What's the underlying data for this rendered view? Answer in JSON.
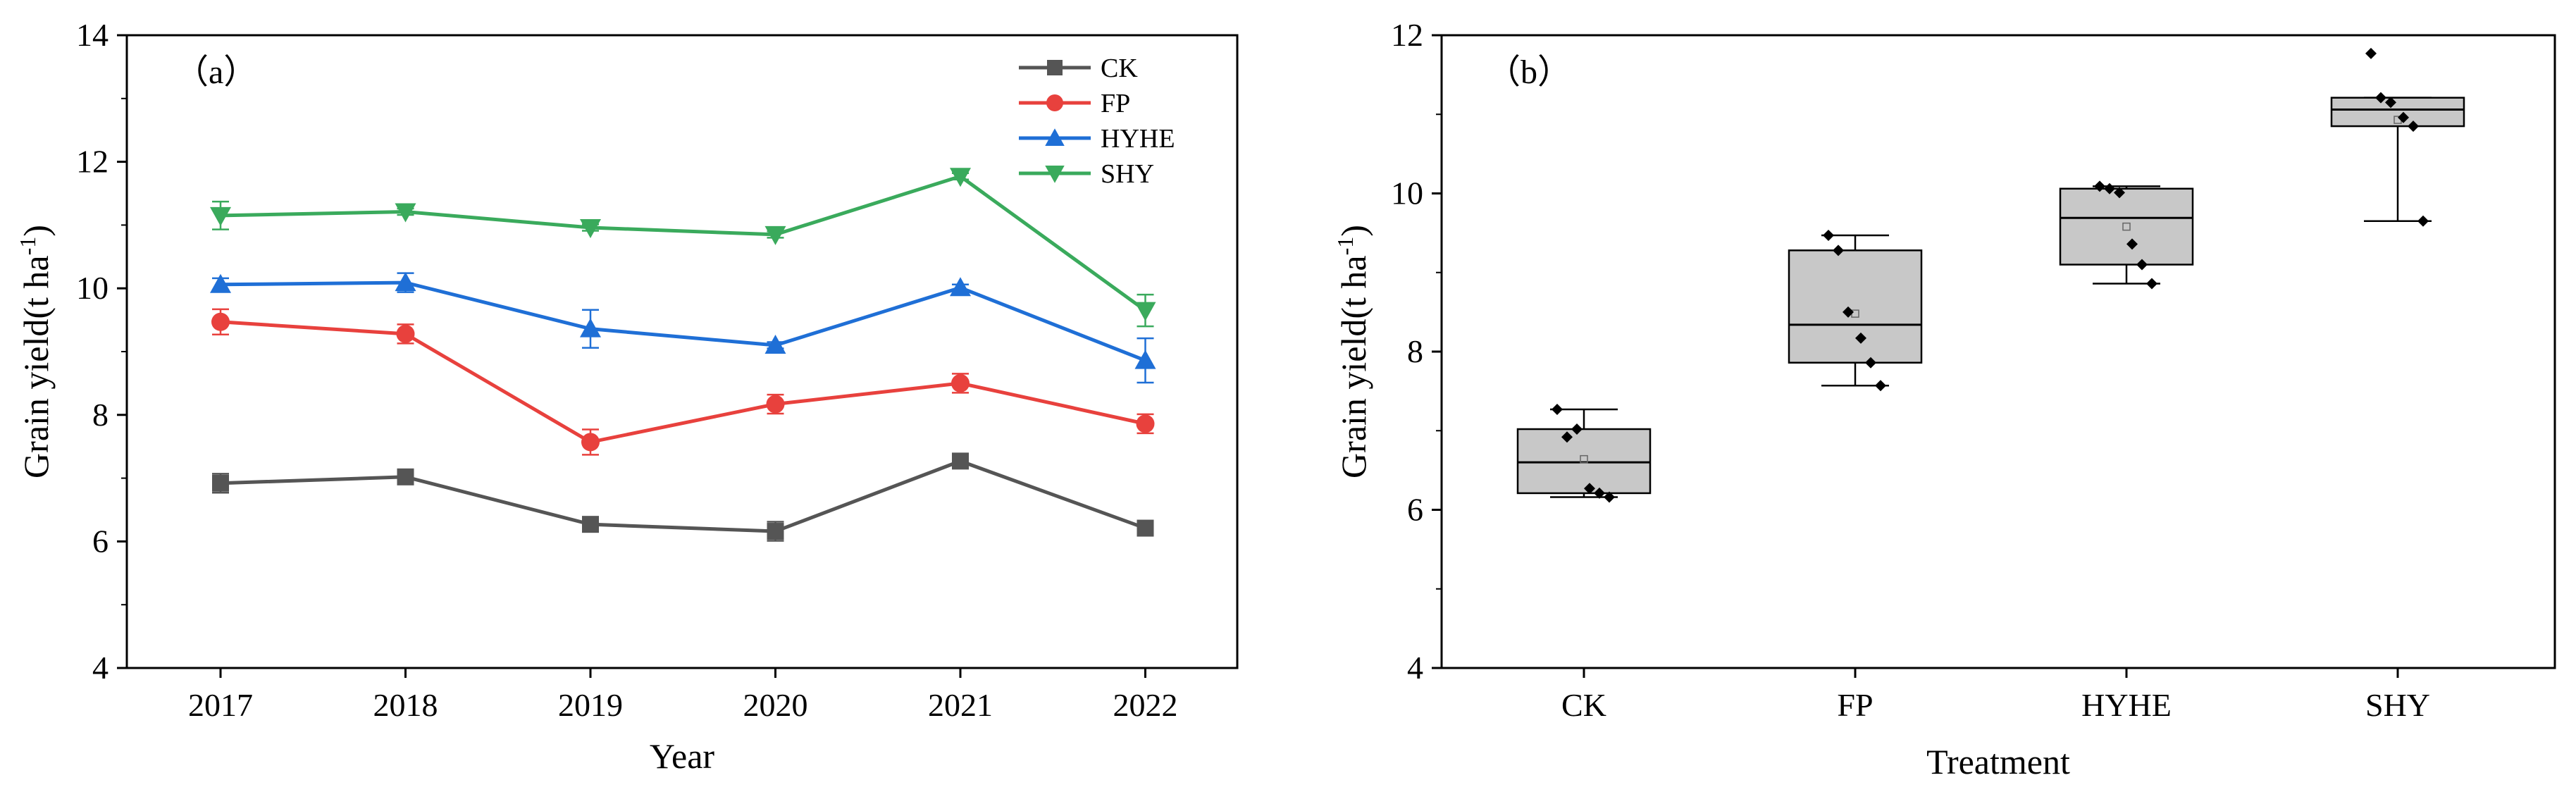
{
  "chart_data": [
    {
      "type": "line",
      "panel_label": "（a）",
      "xlabel": "Year",
      "ylabel": "Grain yield(t ha",
      "ylabel_sup": "-1",
      "ylabel_close": ")",
      "x": [
        "2017",
        "2018",
        "2019",
        "2020",
        "2021",
        "2022"
      ],
      "ylim": [
        4,
        14
      ],
      "yticks": [
        "4",
        "6",
        "8",
        "10",
        "12",
        "14"
      ],
      "legend_position": "top-right",
      "series": [
        {
          "name": "CK",
          "color": "#555555",
          "marker": "square",
          "values": [
            6.92,
            7.02,
            6.27,
            6.16,
            7.27,
            6.21
          ],
          "err": [
            0.15,
            0.1,
            0.05,
            0.15,
            0.1,
            0.1
          ]
        },
        {
          "name": "FP",
          "color": "#e8413d",
          "marker": "circle",
          "values": [
            9.47,
            9.28,
            7.57,
            8.17,
            8.5,
            7.86
          ],
          "err": [
            0.2,
            0.15,
            0.2,
            0.15,
            0.15,
            0.15
          ]
        },
        {
          "name": "HYHE",
          "color": "#1f6fd6",
          "marker": "triangle-up",
          "values": [
            10.06,
            10.09,
            9.36,
            9.1,
            10.01,
            8.86
          ],
          "err": [
            0.1,
            0.15,
            0.3,
            0.05,
            0.05,
            0.35
          ]
        },
        {
          "name": "SHY",
          "color": "#3aaa5c",
          "marker": "triangle-down",
          "values": [
            11.15,
            11.21,
            10.96,
            10.85,
            11.77,
            9.65
          ],
          "err": [
            0.22,
            0.05,
            0.05,
            0.05,
            0.05,
            0.25
          ]
        }
      ]
    },
    {
      "type": "box",
      "panel_label": "（b）",
      "xlabel": "Treatment",
      "ylabel": "Grain yield(t ha",
      "ylabel_sup": "-1",
      "ylabel_close": ")",
      "categories": [
        "CK",
        "FP",
        "HYHE",
        "SHY"
      ],
      "ylim": [
        4,
        12
      ],
      "yticks": [
        "4",
        "6",
        "8",
        "10",
        "12"
      ],
      "boxes": [
        {
          "name": "CK",
          "min": 6.16,
          "q1": 6.21,
          "median": 6.6,
          "q3": 7.02,
          "max": 7.27,
          "mean": 6.64,
          "points": [
            7.27,
            6.92,
            7.02,
            6.27,
            6.21,
            6.16
          ]
        },
        {
          "name": "FP",
          "min": 7.57,
          "q1": 7.86,
          "median": 8.34,
          "q3": 9.28,
          "max": 9.47,
          "mean": 8.48,
          "points": [
            9.47,
            9.28,
            8.5,
            8.17,
            7.86,
            7.57
          ]
        },
        {
          "name": "HYHE",
          "min": 8.86,
          "q1": 9.1,
          "median": 9.69,
          "q3": 10.06,
          "max": 10.09,
          "mean": 9.58,
          "points": [
            10.09,
            10.06,
            10.01,
            9.36,
            9.1,
            8.86
          ]
        },
        {
          "name": "SHY",
          "min": 9.65,
          "q1": 10.85,
          "median": 11.06,
          "q3": 11.21,
          "max": 11.21,
          "mean": 10.93,
          "points": [
            11.77,
            11.21,
            11.15,
            10.96,
            10.85,
            9.65
          ]
        }
      ],
      "box_color": "#c8c8c8"
    }
  ]
}
